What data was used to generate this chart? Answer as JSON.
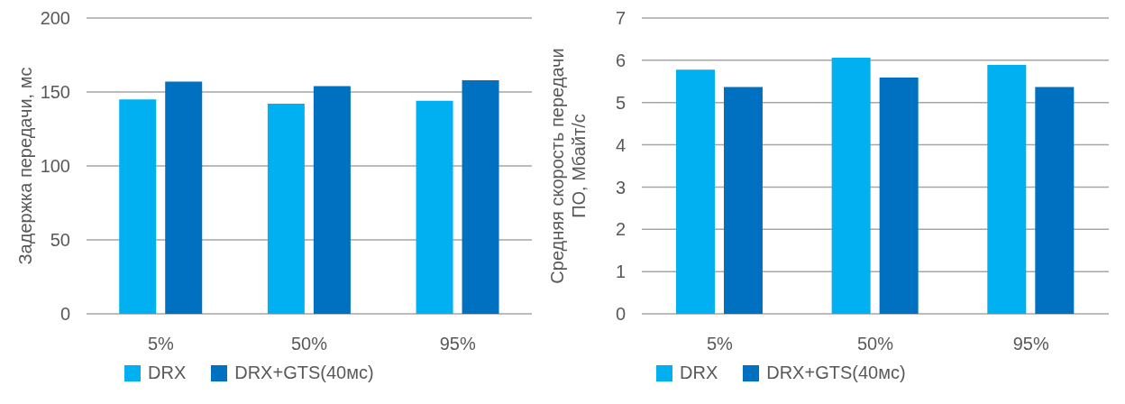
{
  "chart_data": [
    {
      "type": "bar",
      "ylabel": "Задержка передачи, мс",
      "categories": [
        "5%",
        "50%",
        "95%"
      ],
      "series": [
        {
          "name": "DRX",
          "color": "#00b0f0",
          "values": [
            145,
            142,
            144
          ]
        },
        {
          "name": "DRX+GTS(40мс)",
          "color": "#0070c0",
          "values": [
            157,
            154,
            158
          ]
        }
      ],
      "ylim": [
        0,
        200
      ],
      "yticks": [
        0,
        50,
        100,
        150,
        200
      ],
      "grid": "y",
      "legend": "bottom left"
    },
    {
      "type": "bar",
      "ylabel": "Средняя скорость передачи ПО, Мбайт/с",
      "categories": [
        "5%",
        "50%",
        "95%"
      ],
      "series": [
        {
          "name": "DRX",
          "color": "#00b0f0",
          "values": [
            5.78,
            6.06,
            5.89
          ]
        },
        {
          "name": "DRX+GTS(40мс)",
          "color": "#0070c0",
          "values": [
            5.37,
            5.59,
            5.37
          ]
        }
      ],
      "ylim": [
        0,
        7
      ],
      "yticks": [
        0,
        1,
        2,
        3,
        4,
        5,
        6,
        7
      ],
      "grid": "y",
      "legend": "bottom left"
    }
  ]
}
